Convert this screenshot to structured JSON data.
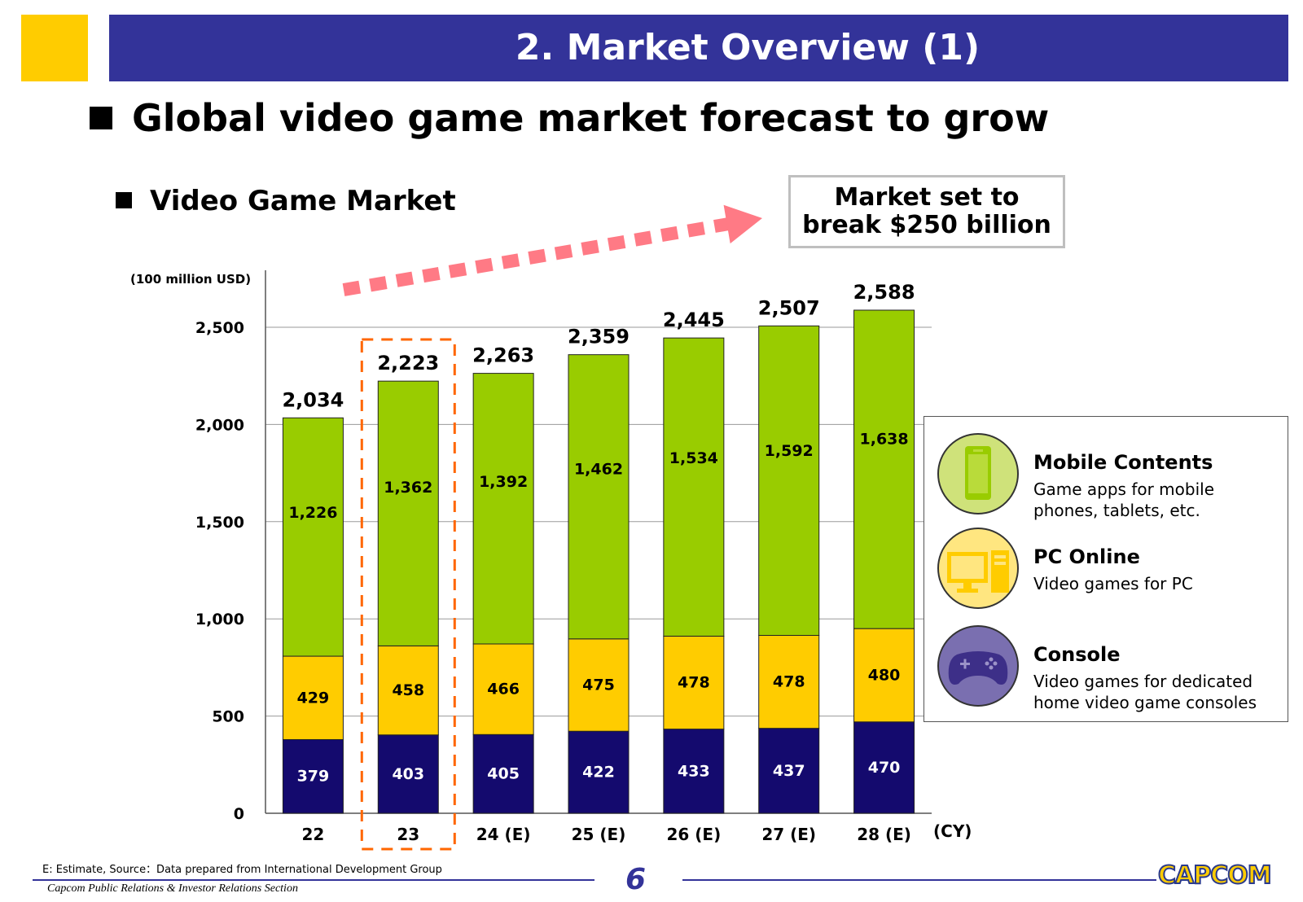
{
  "header": {
    "title": "2. Market Overview (1)",
    "headline": "Global video game market forecast to grow",
    "subhead": "Video Game Market",
    "callout": "Market set to break $250 billion"
  },
  "chart_data": {
    "type": "bar",
    "stacked": true,
    "unit_label": "(100 million USD)",
    "x_unit_label": "(CY)",
    "categories": [
      "22",
      "23",
      "24 (E)",
      "25 (E)",
      "26 (E)",
      "27 (E)",
      "28 (E)"
    ],
    "series": [
      {
        "name": "Console",
        "color": "#140a6e",
        "values": [
          379,
          403,
          405,
          422,
          433,
          437,
          470
        ]
      },
      {
        "name": "PC Online",
        "color": "#ffcc00",
        "values": [
          429,
          458,
          466,
          475,
          478,
          478,
          480
        ]
      },
      {
        "name": "Mobile Contents",
        "color": "#99cc00",
        "values": [
          1226,
          1362,
          1392,
          1462,
          1534,
          1592,
          1638
        ]
      }
    ],
    "totals": [
      "2,034",
      "2,223",
      "2,263",
      "2,359",
      "2,445",
      "2,507",
      "2,588"
    ],
    "value_labels": {
      "Console": [
        "379",
        "403",
        "405",
        "422",
        "433",
        "437",
        "470"
      ],
      "PC Online": [
        "429",
        "458",
        "466",
        "475",
        "478",
        "478",
        "480"
      ],
      "Mobile Contents": [
        "1,226",
        "1,362",
        "1,392",
        "1,462",
        "1,534",
        "1,592",
        "1,638"
      ]
    },
    "ylim": [
      0,
      2800
    ],
    "yticks": [
      0,
      500,
      1000,
      1500,
      2000,
      2500
    ],
    "ytick_labels": [
      "0",
      "500",
      "1,000",
      "1,500",
      "2,000",
      "2,500"
    ],
    "grid": true,
    "highlighted_category": "23",
    "legend_position": "right"
  },
  "legend": [
    {
      "title": "Mobile Contents",
      "desc": "Game apps for mobile phones, tablets, etc.",
      "color": "#cfe27a",
      "icon": "smartphone-icon"
    },
    {
      "title": "PC Online",
      "desc": "Video games for PC",
      "color": "#ffe680",
      "icon": "desktop-pc-icon"
    },
    {
      "title": "Console",
      "desc": "Video games for dedicated home video game consoles",
      "color": "#7a6fb0",
      "icon": "gamepad-icon"
    }
  ],
  "footer": {
    "note": "E: Estimate, Source：Data prepared from International Development Group",
    "credit": "Capcom Public Relations & Investor Relations Section",
    "page_number": "6",
    "logo": "CAPCOM"
  }
}
